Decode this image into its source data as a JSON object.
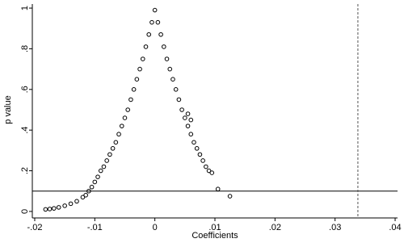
{
  "chart_data": {
    "type": "scatter",
    "x_label": "Coefficients",
    "y_label": "p value",
    "x": [
      -0.0182,
      -0.0175,
      -0.0168,
      -0.016,
      -0.015,
      -0.014,
      -0.013,
      -0.012,
      -0.0115,
      -0.011,
      -0.0105,
      -0.01,
      -0.0095,
      -0.009,
      -0.0085,
      -0.008,
      -0.0075,
      -0.007,
      -0.0065,
      -0.006,
      -0.0055,
      -0.005,
      -0.0045,
      -0.004,
      -0.0035,
      -0.003,
      -0.0025,
      -0.002,
      -0.0015,
      -0.001,
      -0.0005,
      0,
      0.0005,
      0.001,
      0.0015,
      0.002,
      0.0025,
      0.003,
      0.0035,
      0.004,
      0.0045,
      0.005,
      0.0055,
      0.006,
      0.0065,
      0.007,
      0.0075,
      0.008,
      0.0085,
      0.009,
      0.0095,
      0.0105,
      0.0125,
      0.0055,
      0.006
    ],
    "values": [
      0.01,
      0.012,
      0.015,
      0.02,
      0.028,
      0.038,
      0.05,
      0.07,
      0.08,
      0.1,
      0.12,
      0.145,
      0.17,
      0.2,
      0.22,
      0.25,
      0.28,
      0.31,
      0.34,
      0.38,
      0.42,
      0.46,
      0.5,
      0.55,
      0.6,
      0.65,
      0.7,
      0.75,
      0.81,
      0.87,
      0.93,
      0.99,
      0.93,
      0.87,
      0.81,
      0.75,
      0.7,
      0.65,
      0.6,
      0.55,
      0.5,
      0.46,
      0.42,
      0.38,
      0.34,
      0.31,
      0.28,
      0.25,
      0.22,
      0.2,
      0.19,
      0.11,
      0.075,
      0.48,
      0.45
    ],
    "color": "#000000",
    "xlim": [
      -0.0204,
      0.0404
    ],
    "ylim": [
      -0.032,
      1.02
    ],
    "xticks": [
      {
        "value": -0.02,
        "label": "-.02"
      },
      {
        "value": -0.01,
        "label": "-.01"
      },
      0,
      {
        "value": 0.01,
        "label": ".01"
      },
      {
        "value": 0.02,
        "label": ".02"
      },
      {
        "value": 0.03,
        "label": ".03"
      },
      {
        "value": 0.04,
        "label": ".04"
      }
    ],
    "yticks": [
      0,
      {
        "value": 0.2,
        "label": ".2"
      },
      {
        "value": 0.4,
        "label": ".4"
      },
      {
        "value": 0.6,
        "label": ".6"
      },
      {
        "value": 0.8,
        "label": ".8"
      },
      1
    ],
    "reference_lines": {
      "y": 0.1,
      "x": 0.0338
    }
  }
}
